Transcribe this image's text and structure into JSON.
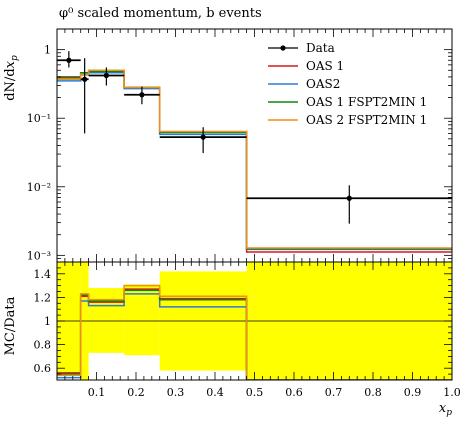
{
  "chart_data": {
    "type": "line",
    "title": "φ⁰ scaled momentum, b events",
    "main_plot": {
      "ylabel": "dN/dx_p",
      "yscale": "log",
      "ylim": [
        0.0008,
        2.0
      ],
      "y_ticks": [
        {
          "value": 1,
          "label": "1"
        },
        {
          "value": 0.1,
          "label": "10⁻¹"
        },
        {
          "value": 0.01,
          "label": "10⁻²"
        },
        {
          "value": 0.001,
          "label": "10⁻³"
        }
      ],
      "legend_position": "top-right",
      "data": {
        "name": "Data",
        "color": "#000000",
        "points": [
          {
            "x": 0.03,
            "y": 0.7,
            "xerr": [
              0.0,
              0.06
            ],
            "yerr": [
              0.55,
              0.95
            ]
          },
          {
            "x": 0.07,
            "y": 0.37,
            "xerr": [
              0.06,
              0.08
            ],
            "yerr": [
              0.06,
              0.75
            ]
          },
          {
            "x": 0.125,
            "y": 0.42,
            "xerr": [
              0.08,
              0.17
            ],
            "yerr": [
              0.3,
              0.55
            ]
          },
          {
            "x": 0.215,
            "y": 0.22,
            "xerr": [
              0.17,
              0.26
            ],
            "yerr": [
              0.16,
              0.29
            ]
          },
          {
            "x": 0.37,
            "y": 0.053,
            "xerr": [
              0.26,
              0.48
            ],
            "yerr": [
              0.031,
              0.074
            ]
          },
          {
            "x": 0.74,
            "y": 0.0068,
            "xerr": [
              0.48,
              1.0
            ],
            "yerr": [
              0.0029,
              0.0105
            ]
          }
        ]
      },
      "bin_edges": [
        0.0,
        0.06,
        0.08,
        0.17,
        0.26,
        0.48,
        1.0
      ],
      "series": [
        {
          "name": "OAS 1",
          "color": "#d7191c",
          "values": [
            0.4,
            0.46,
            0.48,
            0.28,
            0.063,
            0.00112
          ]
        },
        {
          "name": "OAS2",
          "color": "#2c7bd6",
          "values": [
            0.35,
            0.43,
            0.46,
            0.27,
            0.058,
            0.00122
          ]
        },
        {
          "name": "OAS 1 FSPT2MIN 1",
          "color": "#0a8a0a",
          "values": [
            0.39,
            0.46,
            0.48,
            0.28,
            0.062,
            0.00125
          ]
        },
        {
          "name": "OAS 2 FSPT2MIN 1",
          "color": "#f28c1c",
          "values": [
            0.37,
            0.44,
            0.5,
            0.28,
            0.064,
            0.00128
          ]
        }
      ]
    },
    "ratio_plot": {
      "ylabel": "MC/Data",
      "ylim": [
        0.5,
        1.5
      ],
      "y_ticks": [
        0.6,
        0.8,
        1,
        1.2,
        1.4
      ],
      "band_color": "#ffff00",
      "band": [
        {
          "x0": 0.0,
          "x1": 0.06,
          "lo": 0.55,
          "hi": 1.5
        },
        {
          "x0": 0.06,
          "x1": 0.08,
          "lo": 0.5,
          "hi": 1.5
        },
        {
          "x0": 0.08,
          "x1": 0.17,
          "lo": 0.73,
          "hi": 1.28
        },
        {
          "x0": 0.17,
          "x1": 0.26,
          "lo": 0.71,
          "hi": 1.31
        },
        {
          "x0": 0.26,
          "x1": 0.48,
          "lo": 0.58,
          "hi": 1.42
        },
        {
          "x0": 0.48,
          "x1": 1.0,
          "lo": 0.5,
          "hi": 1.5
        }
      ],
      "series": [
        {
          "name": "OAS 1",
          "color": "#d7191c",
          "values": [
            0.56,
            1.21,
            1.16,
            1.27,
            1.19,
            0.5
          ]
        },
        {
          "name": "OAS2",
          "color": "#2c7bd6",
          "values": [
            0.52,
            1.17,
            1.13,
            1.23,
            1.12,
            0.5
          ]
        },
        {
          "name": "OAS 1 FSPT2MIN 1",
          "color": "#0a8a0a",
          "values": [
            0.55,
            1.22,
            1.17,
            1.26,
            1.18,
            0.5
          ]
        },
        {
          "name": "OAS 2 FSPT2MIN 1",
          "color": "#f28c1c",
          "values": [
            0.54,
            1.23,
            1.18,
            1.3,
            1.21,
            0.5
          ]
        }
      ]
    },
    "xaxis": {
      "label": "x_p",
      "xlim": [
        0.0,
        1.0
      ],
      "ticks": [
        {
          "value": 0.1,
          "label": "0.1"
        },
        {
          "value": 0.2,
          "label": "0.2"
        },
        {
          "value": 0.3,
          "label": "0.3"
        },
        {
          "value": 0.4,
          "label": "0.4"
        },
        {
          "value": 0.5,
          "label": "0.5"
        },
        {
          "value": 0.6,
          "label": "0.6"
        },
        {
          "value": 0.7,
          "label": "0.7"
        },
        {
          "value": 0.8,
          "label": "0.8"
        },
        {
          "value": 0.9,
          "label": "0.9"
        },
        {
          "value": 1.0,
          "label": "1.0"
        }
      ]
    }
  }
}
